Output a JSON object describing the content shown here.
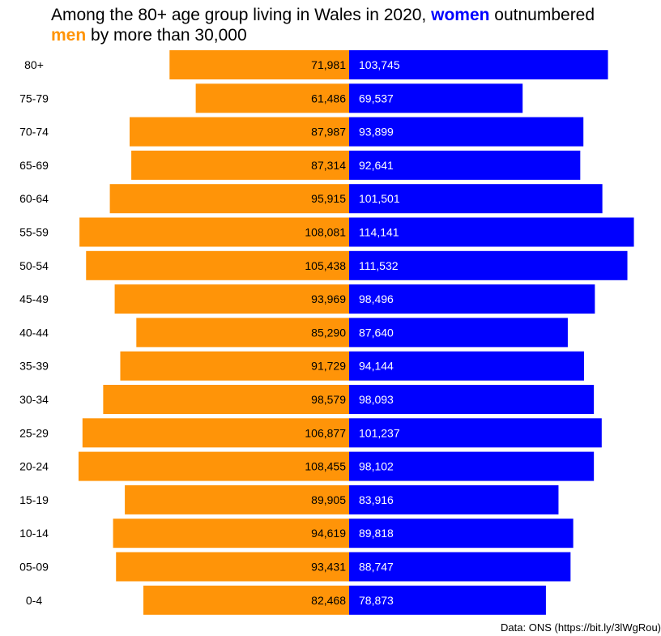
{
  "title": {
    "part1": "Among the 80+ age group living in Wales in 2020, ",
    "women_word": "women",
    "part2": " outnumbered",
    "men_word": "men",
    "part3": " by more than 30,000"
  },
  "caption": "Data: ONS (https://bit.ly/3lWgRou)",
  "colors": {
    "men": "#FF9408",
    "women": "#0000FF",
    "men_label": "#000000",
    "women_label": "#FFFFFF"
  },
  "chart_data": {
    "type": "bar",
    "orientation": "horizontal-diverging",
    "categories": [
      "80+",
      "75-79",
      "70-74",
      "65-69",
      "60-64",
      "55-59",
      "50-54",
      "45-49",
      "40-44",
      "35-39",
      "30-34",
      "25-29",
      "20-24",
      "15-19",
      "10-14",
      "05-09",
      "0-4"
    ],
    "series": [
      {
        "name": "men",
        "values": [
          71981,
          61486,
          87987,
          87314,
          95915,
          108081,
          105438,
          93969,
          85290,
          91729,
          98579,
          106877,
          108455,
          89905,
          94619,
          93431,
          82468
        ]
      },
      {
        "name": "women",
        "values": [
          103745,
          69537,
          93899,
          92641,
          101501,
          114141,
          111532,
          98496,
          87640,
          94144,
          98093,
          101237,
          98102,
          83916,
          89818,
          88747,
          78873
        ]
      }
    ],
    "value_labels": {
      "men": [
        "71,981",
        "61,486",
        "87,987",
        "87,314",
        "95,915",
        "108,081",
        "105,438",
        "93,969",
        "85,290",
        "91,729",
        "98,579",
        "106,877",
        "108,455",
        "89,905",
        "94,619",
        "93,431",
        "82,468"
      ],
      "women": [
        "103,745",
        "69,537",
        "93,899",
        "92,641",
        "101,501",
        "114,141",
        "111,532",
        "98,496",
        "87,640",
        "94,144",
        "98,093",
        "101,237",
        "98,102",
        "83,916",
        "89,818",
        "88,747",
        "78,873"
      ]
    },
    "grid": false,
    "legend": "none"
  }
}
